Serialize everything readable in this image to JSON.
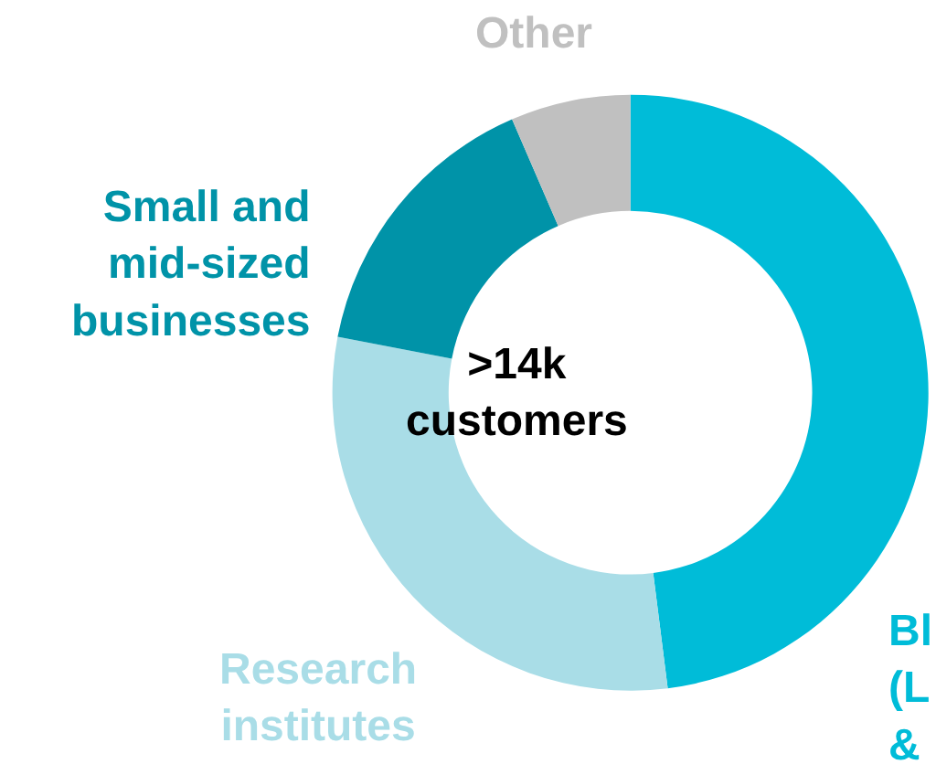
{
  "chart_data": {
    "type": "donut",
    "categories": [
      "Bl\n(L\n&",
      "Research\ninstitutes",
      "Small and\nmid-sized\nbusinesses",
      "Other"
    ],
    "values": [
      48,
      30,
      15.5,
      6.5
    ],
    "colors": [
      "#00bcd8",
      "#a9dde7",
      "#0093a8",
      "#c0c0c0"
    ],
    "annotations": [
      ">14k\ncustomers"
    ],
    "legend": false
  }
}
